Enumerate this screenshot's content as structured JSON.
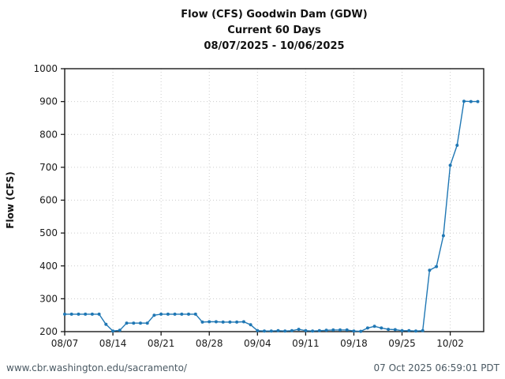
{
  "header": {
    "line1": "Flow (CFS) Goodwin Dam (GDW)",
    "line2": "Current 60 Days",
    "line3": "08/07/2025 - 10/06/2025"
  },
  "footer": {
    "left": "www.cbr.washington.edu/sacramento/",
    "right": "07 Oct 2025 06:59:01 PDT"
  },
  "chart_data": {
    "type": "line",
    "title": "Flow (CFS) Goodwin Dam (GDW)",
    "subtitle": "Current 60 Days",
    "date_range": "08/07/2025 - 10/06/2025",
    "xlabel": "",
    "ylabel": "Flow (CFS)",
    "ylim": [
      200,
      1000
    ],
    "y_ticks": [
      200,
      300,
      400,
      500,
      600,
      700,
      800,
      900,
      1000
    ],
    "x_tick_labels": [
      "08/07",
      "08/14",
      "08/21",
      "08/28",
      "09/04",
      "09/11",
      "09/18",
      "09/25",
      "10/02"
    ],
    "x_tick_days": [
      0,
      7,
      14,
      21,
      28,
      35,
      42,
      49,
      56
    ],
    "grid": true,
    "legend_position": "none",
    "line_color": "#1f77b4",
    "axis_color": "#1a1a1a",
    "grid_color": "#cccccc",
    "series": [
      {
        "name": "Flow",
        "dates": [
          "08/07",
          "08/08",
          "08/09",
          "08/10",
          "08/11",
          "08/12",
          "08/13",
          "08/14",
          "08/15",
          "08/16",
          "08/17",
          "08/18",
          "08/19",
          "08/20",
          "08/21",
          "08/22",
          "08/23",
          "08/24",
          "08/25",
          "08/26",
          "08/27",
          "08/28",
          "08/29",
          "08/30",
          "08/31",
          "09/01",
          "09/02",
          "09/03",
          "09/04",
          "09/05",
          "09/06",
          "09/07",
          "09/08",
          "09/09",
          "09/10",
          "09/11",
          "09/12",
          "09/13",
          "09/14",
          "09/15",
          "09/16",
          "09/17",
          "09/18",
          "09/19",
          "09/20",
          "09/21",
          "09/22",
          "09/23",
          "09/24",
          "09/25",
          "09/26",
          "09/27",
          "09/28",
          "09/29",
          "09/30",
          "10/01",
          "10/02",
          "10/03",
          "10/04",
          "10/05",
          "10/06"
        ],
        "values": [
          253,
          253,
          253,
          253,
          253,
          253,
          222,
          202,
          204,
          226,
          226,
          226,
          226,
          250,
          253,
          253,
          253,
          253,
          253,
          253,
          229,
          230,
          230,
          229,
          229,
          229,
          230,
          221,
          203,
          202,
          202,
          203,
          202,
          203,
          207,
          203,
          202,
          203,
          204,
          205,
          205,
          205,
          202,
          201,
          211,
          216,
          211,
          207,
          206,
          203,
          203,
          202,
          203,
          387,
          398,
          492,
          706,
          767,
          901,
          900,
          900
        ]
      }
    ]
  }
}
